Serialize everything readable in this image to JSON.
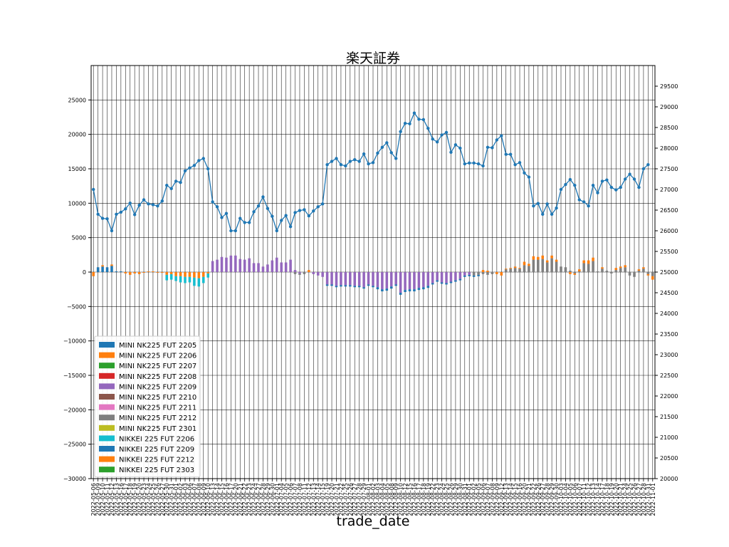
{
  "chart_data": {
    "type": "bar",
    "title": "楽天証券",
    "xlabel": "trade_date",
    "ylabel": "",
    "ylim": [
      -30000,
      30000
    ],
    "y_ticks": [
      -30000,
      -25000,
      -20000,
      -15000,
      -10000,
      -5000,
      0,
      5000,
      10000,
      15000,
      20000,
      25000
    ],
    "y2lim": [
      20000,
      30000
    ],
    "y2_ticks": [
      20000,
      20500,
      21000,
      21500,
      22000,
      22500,
      23000,
      23500,
      24000,
      24500,
      25000,
      25500,
      26000,
      26500,
      27000,
      27500,
      28000,
      28500,
      29000,
      29500
    ],
    "grid": true,
    "legend_position": "lower-left",
    "dates": [
      "2022-05-06",
      "2022-05-09",
      "2022-05-10",
      "2022-05-11",
      "2022-05-12",
      "2022-05-13",
      "2022-05-16",
      "2022-05-17",
      "2022-05-18",
      "2022-05-19",
      "2022-05-20",
      "2022-05-23",
      "2022-05-24",
      "2022-05-25",
      "2022-05-26",
      "2022-05-27",
      "2022-05-30",
      "2022-05-31",
      "2022-06-01",
      "2022-06-02",
      "2022-06-03",
      "2022-06-06",
      "2022-06-07",
      "2022-06-08",
      "2022-06-09",
      "2022-06-10",
      "2022-06-13",
      "2022-06-14",
      "2022-06-15",
      "2022-06-16",
      "2022-06-17",
      "2022-06-20",
      "2022-06-21",
      "2022-06-22",
      "2022-06-23",
      "2022-06-24",
      "2022-06-27",
      "2022-06-28",
      "2022-06-29",
      "2022-06-30",
      "2022-07-01",
      "2022-07-04",
      "2022-07-05",
      "2022-07-06",
      "2022-07-07",
      "2022-07-08",
      "2022-07-11",
      "2022-07-12",
      "2022-07-13",
      "2022-07-14",
      "2022-07-15",
      "2022-07-19",
      "2022-07-20",
      "2022-07-21",
      "2022-07-22",
      "2022-07-25",
      "2022-07-26",
      "2022-07-27",
      "2022-07-28",
      "2022-07-29",
      "2022-08-01",
      "2022-08-02",
      "2022-08-03",
      "2022-08-04",
      "2022-08-05",
      "2022-08-08",
      "2022-08-09",
      "2022-08-10",
      "2022-08-12",
      "2022-08-15",
      "2022-08-16",
      "2022-08-17",
      "2022-08-18",
      "2022-08-19",
      "2022-08-22",
      "2022-08-23",
      "2022-08-24",
      "2022-08-25",
      "2022-08-26",
      "2022-08-29",
      "2022-08-30",
      "2022-08-31",
      "2022-09-01",
      "2022-09-02",
      "2022-09-05",
      "2022-09-06",
      "2022-09-07",
      "2022-09-08",
      "2022-09-09",
      "2022-09-12",
      "2022-09-13",
      "2022-09-14",
      "2022-09-15",
      "2022-09-16",
      "2022-09-20",
      "2022-09-21",
      "2022-09-22",
      "2022-09-26",
      "2022-09-27",
      "2022-09-28",
      "2022-09-29",
      "2022-09-30",
      "2022-10-03",
      "2022-10-04",
      "2022-10-05",
      "2022-10-06",
      "2022-10-07",
      "2022-10-11",
      "2022-10-12",
      "2022-10-13",
      "2022-10-14",
      "2022-10-17",
      "2022-10-18",
      "2022-10-19",
      "2022-10-20",
      "2022-10-21",
      "2022-10-24",
      "2022-10-25",
      "2022-10-26",
      "2022-10-27",
      "2022-10-28",
      "2022-10-31",
      "2022-11-01"
    ],
    "price_series": {
      "color": "#1f77b4",
      "values": [
        27000,
        26400,
        26300,
        26290,
        26000,
        26400,
        26450,
        26530,
        26670,
        26390,
        26620,
        26750,
        26650,
        26630,
        26600,
        26720,
        27100,
        27020,
        27200,
        27170,
        27450,
        27520,
        27580,
        27700,
        27750,
        27500,
        26700,
        26580,
        26320,
        26420,
        26000,
        26000,
        26300,
        26200,
        26200,
        26460,
        26600,
        26820,
        26540,
        26350,
        26000,
        26250,
        26370,
        26100,
        26440,
        26490,
        26510,
        26360,
        26480,
        26580,
        26650,
        27600,
        27680,
        27750,
        27600,
        27570,
        27680,
        27720,
        27680,
        27860,
        27620,
        27650,
        27880,
        28020,
        28130,
        27890,
        27750,
        28400,
        28600,
        28590,
        28850,
        28700,
        28690,
        28480,
        28220,
        28150,
        28320,
        28380,
        27900,
        28080,
        28000,
        27620,
        27640,
        27640,
        27620,
        27570,
        28020,
        28010,
        28200,
        28300,
        27850,
        27850,
        27600,
        27650,
        27400,
        27300,
        26600,
        26660,
        26400,
        26650,
        26400,
        26550,
        27000,
        27120,
        27240,
        27100,
        26750,
        26700,
        26600,
        27100,
        26920,
        27200,
        27230,
        27050,
        26990,
        27050,
        27250,
        27370,
        27250,
        27050,
        27500,
        27600
      ]
    },
    "series": [
      {
        "name": "MINI NK225 FUT 2205",
        "color": "#1f77b4"
      },
      {
        "name": "MINI NK225 FUT 2206",
        "color": "#ff7f0e"
      },
      {
        "name": "MINI NK225 FUT 2207",
        "color": "#2ca02c"
      },
      {
        "name": "MINI NK225 FUT 2208",
        "color": "#d62728"
      },
      {
        "name": "MINI NK225 FUT 2209",
        "color": "#9467bd"
      },
      {
        "name": "MINI NK225 FUT 2210",
        "color": "#8c564b"
      },
      {
        "name": "MINI NK225 FUT 2211",
        "color": "#e377c2"
      },
      {
        "name": "MINI NK225 FUT 2212",
        "color": "#7f7f7f"
      },
      {
        "name": "MINI NK225 FUT 2301",
        "color": "#bcbd22"
      },
      {
        "name": "NIKKEI 225 FUT 2206",
        "color": "#17becf"
      },
      {
        "name": "NIKKEI 225 FUT 2209",
        "color": "#1f77b4"
      },
      {
        "name": "NIKKEI 225 FUT 2212",
        "color": "#ff7f0e"
      },
      {
        "name": "NIKKEI 225 FUT 2303",
        "color": "#2ca02c"
      }
    ],
    "bars": [
      [
        [
          1,
          -600
        ]
      ],
      [
        [
          0,
          700
        ]
      ],
      [
        [
          0,
          800
        ],
        [
          1,
          200
        ]
      ],
      [
        [
          0,
          700
        ]
      ],
      [
        [
          0,
          900
        ],
        [
          1,
          200
        ]
      ],
      [
        [
          0,
          100
        ]
      ],
      [
        [
          0,
          100
        ]
      ],
      [
        [
          1,
          -200
        ]
      ],
      [
        [
          1,
          -400
        ]
      ],
      [
        [
          1,
          -200
        ]
      ],
      [
        [
          1,
          -300
        ]
      ],
      [
        [
          1,
          -100
        ]
      ],
      [
        [
          1,
          100
        ]
      ],
      [
        [
          1,
          100
        ]
      ],
      [
        [
          1,
          -100
        ]
      ],
      [
        [
          1,
          -100
        ]
      ],
      [
        [
          1,
          -400
        ],
        [
          9,
          -800
        ]
      ],
      [
        [
          1,
          -300
        ],
        [
          9,
          -800
        ]
      ],
      [
        [
          1,
          -600
        ],
        [
          9,
          -700
        ]
      ],
      [
        [
          1,
          -600
        ],
        [
          9,
          -900
        ]
      ],
      [
        [
          1,
          -700
        ],
        [
          9,
          -900
        ]
      ],
      [
        [
          1,
          -700
        ],
        [
          9,
          -800
        ]
      ],
      [
        [
          1,
          -800
        ],
        [
          9,
          -1200
        ]
      ],
      [
        [
          1,
          -900
        ],
        [
          9,
          -1200
        ]
      ],
      [
        [
          1,
          -700
        ],
        [
          9,
          -900
        ]
      ],
      [
        [
          1,
          -200
        ],
        [
          9,
          -600
        ]
      ],
      [
        [
          4,
          1600
        ]
      ],
      [
        [
          4,
          1800
        ]
      ],
      [
        [
          4,
          2200
        ]
      ],
      [
        [
          4,
          2100
        ]
      ],
      [
        [
          4,
          2400
        ]
      ],
      [
        [
          4,
          2400
        ]
      ],
      [
        [
          4,
          1900
        ]
      ],
      [
        [
          4,
          1800
        ]
      ],
      [
        [
          4,
          2000
        ]
      ],
      [
        [
          4,
          1300
        ]
      ],
      [
        [
          4,
          1300
        ]
      ],
      [
        [
          4,
          800
        ]
      ],
      [
        [
          4,
          1100
        ]
      ],
      [
        [
          4,
          1700
        ]
      ],
      [
        [
          4,
          2100
        ]
      ],
      [
        [
          4,
          1400
        ]
      ],
      [
        [
          4,
          1400
        ]
      ],
      [
        [
          4,
          1800
        ]
      ],
      [
        [
          4,
          300
        ],
        [
          7,
          -300
        ]
      ],
      [
        [
          4,
          -200
        ],
        [
          7,
          -200
        ]
      ],
      [
        [
          7,
          -300
        ]
      ],
      [
        [
          1,
          300
        ]
      ],
      [
        [
          4,
          -300
        ]
      ],
      [
        [
          4,
          -500
        ]
      ],
      [
        [
          4,
          -700
        ]
      ],
      [
        [
          4,
          -1800
        ],
        [
          10,
          -200
        ]
      ],
      [
        [
          4,
          -1800
        ],
        [
          10,
          -200
        ]
      ],
      [
        [
          4,
          -2000
        ],
        [
          10,
          -200
        ]
      ],
      [
        [
          4,
          -1900
        ],
        [
          10,
          -200
        ]
      ],
      [
        [
          4,
          -1900
        ],
        [
          10,
          -200
        ]
      ],
      [
        [
          4,
          -1900
        ],
        [
          10,
          -200
        ]
      ],
      [
        [
          4,
          -2000
        ],
        [
          10,
          -200
        ]
      ],
      [
        [
          4,
          -2000
        ],
        [
          10,
          -200
        ]
      ],
      [
        [
          4,
          -2200
        ],
        [
          10,
          -200
        ]
      ],
      [
        [
          4,
          -1800
        ],
        [
          10,
          -200
        ]
      ],
      [
        [
          4,
          -2000
        ],
        [
          10,
          -200
        ]
      ],
      [
        [
          4,
          -2200
        ],
        [
          10,
          -300
        ]
      ],
      [
        [
          4,
          -2500
        ],
        [
          10,
          -300
        ]
      ],
      [
        [
          4,
          -2400
        ],
        [
          10,
          -300
        ]
      ],
      [
        [
          4,
          -2100
        ],
        [
          10,
          -300
        ]
      ],
      [
        [
          4,
          -1800
        ],
        [
          10,
          -200
        ]
      ],
      [
        [
          4,
          -3000
        ],
        [
          10,
          -300
        ]
      ],
      [
        [
          4,
          -2600
        ],
        [
          10,
          -300
        ]
      ],
      [
        [
          4,
          -2500
        ],
        [
          10,
          -300
        ]
      ],
      [
        [
          4,
          -2500
        ],
        [
          10,
          -300
        ]
      ],
      [
        [
          4,
          -2300
        ],
        [
          10,
          -300
        ]
      ],
      [
        [
          4,
          -2200
        ],
        [
          10,
          -300
        ]
      ],
      [
        [
          4,
          -2000
        ],
        [
          10,
          -300
        ]
      ],
      [
        [
          4,
          -1600
        ],
        [
          10,
          -200
        ]
      ],
      [
        [
          4,
          -1200
        ],
        [
          10,
          -200
        ]
      ],
      [
        [
          4,
          -1500
        ],
        [
          10,
          -200
        ]
      ],
      [
        [
          4,
          -1600
        ],
        [
          10,
          -200
        ]
      ],
      [
        [
          4,
          -1400
        ],
        [
          10,
          -200
        ]
      ],
      [
        [
          4,
          -1200
        ],
        [
          10,
          -200
        ]
      ],
      [
        [
          4,
          -1000
        ],
        [
          10,
          -200
        ]
      ],
      [
        [
          4,
          -500
        ],
        [
          10,
          -200
        ]
      ],
      [
        [
          4,
          -400
        ],
        [
          10,
          -200
        ]
      ],
      [
        [
          7,
          -500
        ],
        [
          10,
          -200
        ]
      ],
      [
        [
          7,
          -400
        ],
        [
          10,
          -200
        ]
      ],
      [
        [
          7,
          -300
        ],
        [
          1,
          300
        ]
      ],
      [
        [
          7,
          -400
        ],
        [
          1,
          200
        ]
      ],
      [
        [
          7,
          -300
        ]
      ],
      [
        [
          1,
          -300
        ]
      ],
      [
        [
          1,
          -500
        ]
      ],
      [
        [
          7,
          400
        ],
        [
          1,
          100
        ]
      ],
      [
        [
          7,
          500
        ],
        [
          1,
          100
        ]
      ],
      [
        [
          7,
          600
        ],
        [
          1,
          200
        ]
      ],
      [
        [
          7,
          500
        ],
        [
          1,
          100
        ]
      ],
      [
        [
          7,
          1000
        ],
        [
          1,
          500
        ]
      ],
      [
        [
          7,
          900
        ],
        [
          1,
          300
        ]
      ],
      [
        [
          7,
          1800
        ],
        [
          1,
          500
        ]
      ],
      [
        [
          7,
          1800
        ],
        [
          1,
          400
        ]
      ],
      [
        [
          7,
          1900
        ],
        [
          1,
          500
        ]
      ],
      [
        [
          7,
          1400
        ],
        [
          1,
          300
        ]
      ],
      [
        [
          7,
          2000
        ],
        [
          1,
          400
        ]
      ],
      [
        [
          7,
          1500
        ],
        [
          1,
          300
        ]
      ],
      [
        [
          7,
          800
        ]
      ],
      [
        [
          7,
          700
        ]
      ],
      [
        [
          7,
          200
        ],
        [
          1,
          -300
        ]
      ],
      [
        [
          7,
          -200
        ],
        [
          1,
          -200
        ]
      ],
      [
        [
          7,
          100
        ],
        [
          1,
          300
        ]
      ],
      [
        [
          7,
          1300
        ],
        [
          1,
          400
        ]
      ],
      [
        [
          7,
          1200
        ],
        [
          1,
          500
        ]
      ],
      [
        [
          7,
          1600
        ],
        [
          1,
          500
        ]
      ],
      [
        [
          7,
          100
        ]
      ],
      [
        [
          7,
          500
        ],
        [
          1,
          200
        ]
      ],
      [
        [
          7,
          200
        ]
      ],
      [
        [
          7,
          -200
        ]
      ],
      [
        [
          7,
          300
        ],
        [
          1,
          300
        ]
      ],
      [
        [
          7,
          600
        ],
        [
          1,
          200
        ]
      ],
      [
        [
          7,
          700
        ],
        [
          1,
          300
        ]
      ],
      [
        [
          7,
          -500
        ]
      ],
      [
        [
          7,
          -700
        ]
      ],
      [
        [
          7,
          200
        ],
        [
          1,
          200
        ]
      ],
      [
        [
          7,
          500
        ],
        [
          1,
          200
        ]
      ],
      [
        [
          7,
          -300
        ],
        [
          1,
          -200
        ]
      ],
      [
        [
          7,
          -600
        ],
        [
          1,
          -500
        ]
      ]
    ]
  }
}
